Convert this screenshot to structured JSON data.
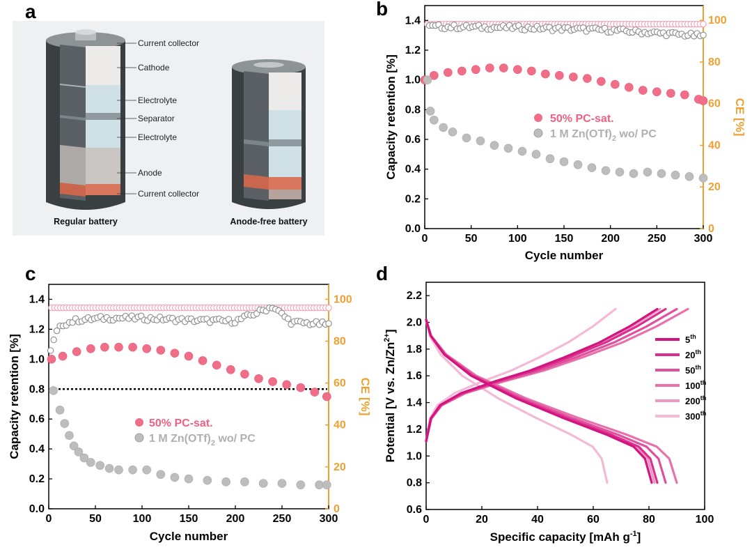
{
  "panel_labels": [
    "a",
    "b",
    "c",
    "d"
  ],
  "colors": {
    "pink": "#f06e88",
    "pink_open": "#f4a0b4",
    "grey": "#bdbdbd",
    "grey_open": "#8c8c8c",
    "ce_axis": "#f0a030",
    "d_series": [
      "#d4147e",
      "#db2f8e",
      "#e0509c",
      "#e871ac",
      "#ef95c2",
      "#f4b9d6"
    ]
  },
  "battery_diagram": {
    "regular_caption": "Regular battery",
    "anode_free_caption": "Anode-free battery",
    "layer_labels": [
      "Current collector",
      "Cathode",
      "Electrolyte",
      "Separator",
      "Electrolyte",
      "Anode",
      "Current collector"
    ]
  },
  "chart_data": [
    {
      "panel": "b",
      "type": "scatter",
      "xlabel": "Cycle number",
      "ylabel": "Capacity retention [%]",
      "ylabel_right": "CE [%]",
      "xlim": [
        0,
        300
      ],
      "ylim": [
        0.0,
        1.5
      ],
      "ylim_right": [
        0,
        107.1
      ],
      "xticks": [
        "0",
        "50",
        "100",
        "150",
        "200",
        "250",
        "300"
      ],
      "yticks": [
        "0.0",
        "0.2",
        "0.4",
        "0.6",
        "0.8",
        "1.0",
        "1.2",
        "1.4"
      ],
      "yticks_right": [
        "0",
        "20",
        "40",
        "60",
        "80",
        "100"
      ],
      "legend": [
        "50% PC-sat.",
        "1 M Zn(OTf)",
        "2",
        " wo/ PC"
      ],
      "series": [
        {
          "name": "50% PC-sat. capacity retention",
          "axis": "left",
          "marker": "filled-pink",
          "x": [
            0,
            10,
            25,
            40,
            55,
            70,
            85,
            100,
            115,
            130,
            145,
            160,
            175,
            190,
            205,
            220,
            235,
            250,
            265,
            280,
            295,
            300
          ],
          "y": [
            1.0,
            1.03,
            1.05,
            1.06,
            1.07,
            1.08,
            1.08,
            1.07,
            1.06,
            1.04,
            1.03,
            1.02,
            1.01,
            0.99,
            0.97,
            0.95,
            0.93,
            0.92,
            0.91,
            0.9,
            0.87,
            0.86
          ]
        },
        {
          "name": "1 M Zn(OTf)2 wo/ PC capacity retention",
          "axis": "left",
          "marker": "filled-grey",
          "x": [
            3,
            6,
            10,
            20,
            30,
            45,
            60,
            75,
            90,
            105,
            120,
            135,
            150,
            165,
            180,
            195,
            210,
            225,
            240,
            255,
            270,
            285,
            300
          ],
          "y": [
            1.0,
            0.79,
            0.73,
            0.68,
            0.65,
            0.61,
            0.59,
            0.56,
            0.54,
            0.52,
            0.5,
            0.47,
            0.45,
            0.43,
            0.41,
            0.39,
            0.38,
            0.37,
            0.38,
            0.37,
            0.36,
            0.35,
            0.34
          ]
        },
        {
          "name": "50% PC-sat. CE",
          "axis": "right",
          "marker": "open-pink",
          "x": [
            3,
            300
          ],
          "y": [
            98.2,
            98.2
          ],
          "count": 90
        },
        {
          "name": "1 M Zn(OTf)2 wo/ PC CE",
          "axis": "right",
          "marker": "open-grey",
          "x": [
            5,
            100,
            200,
            300
          ],
          "y": [
            97.0,
            96.5,
            95.3,
            92.5
          ],
          "count": 90
        }
      ]
    },
    {
      "panel": "c",
      "type": "scatter",
      "xlabel": "Cycle number",
      "ylabel": "Capacity retention [%]",
      "ylabel_right": "CE [%]",
      "xlim": [
        0,
        300
      ],
      "ylim": [
        0.0,
        1.5
      ],
      "ylim_right": [
        0,
        107.1
      ],
      "xticks": [
        "0",
        "50",
        "100",
        "150",
        "200",
        "250",
        "300"
      ],
      "yticks": [
        "0.0",
        "0.2",
        "0.4",
        "0.6",
        "0.8",
        "1.0",
        "1.2",
        "1.4"
      ],
      "yticks_right": [
        "0",
        "20",
        "40",
        "60",
        "80",
        "100"
      ],
      "reference_line": 0.8,
      "legend": [
        "50% PC-sat.",
        "1 M Zn(OTf)",
        "2",
        " wo/ PC"
      ],
      "series": [
        {
          "name": "50% PC-sat. capacity retention",
          "axis": "left",
          "marker": "filled-pink",
          "x": [
            3,
            15,
            30,
            45,
            60,
            75,
            90,
            105,
            120,
            135,
            150,
            165,
            180,
            195,
            210,
            225,
            240,
            255,
            270,
            285,
            298
          ],
          "y": [
            1.0,
            1.02,
            1.05,
            1.07,
            1.08,
            1.08,
            1.08,
            1.07,
            1.06,
            1.04,
            1.02,
            0.99,
            0.96,
            0.93,
            0.9,
            0.87,
            0.85,
            0.83,
            0.81,
            0.78,
            0.75
          ]
        },
        {
          "name": "1 M Zn(OTf)2 wo/ PC capacity retention",
          "axis": "left",
          "marker": "filled-grey",
          "x": [
            5,
            12,
            17,
            22,
            27,
            32,
            38,
            45,
            55,
            65,
            75,
            90,
            105,
            120,
            135,
            150,
            170,
            190,
            210,
            230,
            250,
            270,
            290,
            298
          ],
          "y": [
            0.79,
            0.66,
            0.57,
            0.49,
            0.42,
            0.38,
            0.34,
            0.31,
            0.29,
            0.27,
            0.26,
            0.26,
            0.26,
            0.23,
            0.21,
            0.2,
            0.19,
            0.18,
            0.18,
            0.17,
            0.17,
            0.16,
            0.16,
            0.16
          ]
        },
        {
          "name": "50% PC-sat. CE",
          "axis": "right",
          "marker": "open-pink",
          "x": [
            3,
            300
          ],
          "y": [
            95.9,
            95.9
          ],
          "count": 95
        },
        {
          "name": "1 M Zn(OTf)2 wo/ PC CE",
          "axis": "right",
          "marker": "open-grey",
          "x": [
            2,
            8,
            15,
            30,
            60,
            100,
            150,
            200,
            240,
            260,
            300
          ],
          "y": [
            75,
            84,
            88,
            90,
            91,
            91,
            90,
            89.5,
            96.5,
            89,
            88
          ],
          "count": 90
        }
      ]
    },
    {
      "panel": "d",
      "type": "line",
      "xlabel": "Specific capacity [mAh g",
      "xlabel_sup": "-1",
      "xlabel_end": "]",
      "ylabel": "Potential [V vs. Zn/Zn",
      "ylabel_sup": "2+",
      "ylabel_end": "]",
      "xlim": [
        0,
        100
      ],
      "ylim": [
        0.6,
        2.3
      ],
      "xticks": [
        "0",
        "20",
        "40",
        "60",
        "80",
        "100"
      ],
      "yticks": [
        "0.6",
        "0.8",
        "1.0",
        "1.2",
        "1.4",
        "1.6",
        "1.8",
        "2.0",
        "2.2"
      ],
      "legend": [
        {
          "label": "5",
          "sup": "th"
        },
        {
          "label": "20",
          "sup": "th"
        },
        {
          "label": "50",
          "sup": "th"
        },
        {
          "label": "100",
          "sup": "th"
        },
        {
          "label": "200",
          "sup": "th"
        },
        {
          "label": "300",
          "sup": "th"
        }
      ],
      "series": [
        {
          "name": "5th",
          "charge_end": 83,
          "discharge_end": 81
        },
        {
          "name": "20th",
          "charge_end": 86,
          "discharge_end": 83
        },
        {
          "name": "50th",
          "charge_end": 90,
          "discharge_end": 86
        },
        {
          "name": "100th",
          "charge_end": 94,
          "discharge_end": 90
        },
        {
          "name": "200th",
          "charge_end": 84,
          "discharge_end": 82
        },
        {
          "name": "300th",
          "charge_end": 68,
          "discharge_end": 65
        }
      ]
    }
  ]
}
